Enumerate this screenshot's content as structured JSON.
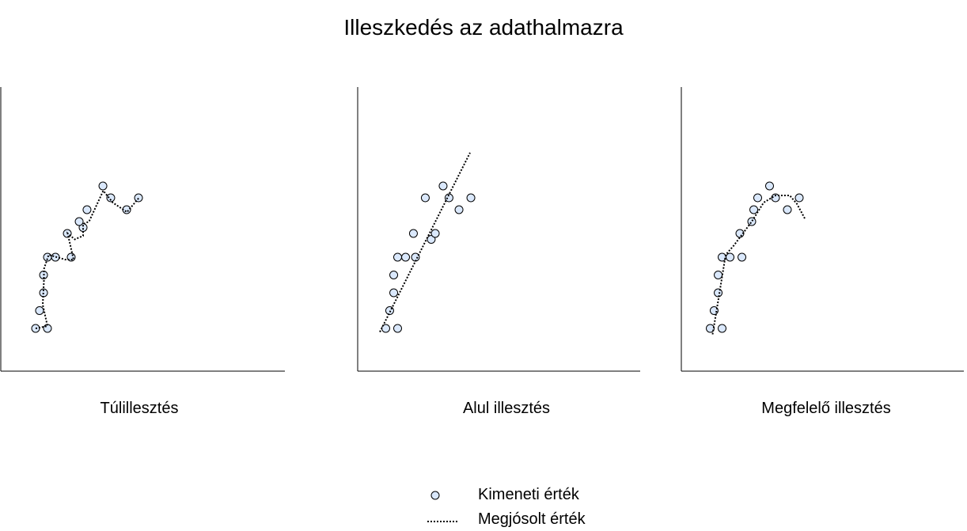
{
  "title": "Illeszkedés az adathalmazra",
  "colors": {
    "marker_fill": "#dae8fc",
    "marker_stroke": "#000000",
    "line": "#000000"
  },
  "legend": [
    {
      "label": "Kimeneti érték",
      "symbol": "circle-marker"
    },
    {
      "label": "Megjósolt érték",
      "symbol": "dotted-line"
    }
  ],
  "chart_data": [
    {
      "type": "scatter",
      "title": "Túlillesztés",
      "points": [
        [
          1,
          1
        ],
        [
          2,
          1
        ],
        [
          1.33,
          2.5
        ],
        [
          1.67,
          4
        ],
        [
          1.67,
          5.5
        ],
        [
          2,
          7
        ],
        [
          2.67,
          7
        ],
        [
          4,
          7
        ],
        [
          3.67,
          9
        ],
        [
          5,
          9.5
        ],
        [
          4.67,
          10
        ],
        [
          5.33,
          11
        ],
        [
          6.67,
          13
        ],
        [
          7.33,
          12
        ],
        [
          8.67,
          11
        ],
        [
          9.67,
          12
        ]
      ],
      "fit_type": "overfit-curve",
      "fit_line": [
        [
          1,
          1
        ],
        [
          2,
          1.2
        ],
        [
          1.6,
          3
        ],
        [
          1.7,
          5
        ],
        [
          1.7,
          6
        ],
        [
          2.1,
          7.2
        ],
        [
          3.5,
          6.8
        ],
        [
          4.2,
          6.8
        ],
        [
          3.7,
          9
        ],
        [
          4.3,
          8.5
        ],
        [
          5,
          8.8
        ],
        [
          5,
          9.8
        ],
        [
          5.5,
          10
        ],
        [
          6.7,
          12.6
        ],
        [
          7.5,
          11.6
        ],
        [
          8.7,
          10.8
        ],
        [
          9.7,
          12
        ]
      ]
    },
    {
      "type": "scatter",
      "title": "Alul illesztés",
      "points": [
        [
          1.5,
          1
        ],
        [
          1.83,
          2.5
        ],
        [
          2.17,
          4
        ],
        [
          2.17,
          5.5
        ],
        [
          2.5,
          7
        ],
        [
          2.5,
          1
        ],
        [
          3.17,
          7
        ],
        [
          3.83,
          9
        ],
        [
          4,
          7
        ],
        [
          4.83,
          12
        ],
        [
          5.33,
          8.5
        ],
        [
          5.67,
          9
        ],
        [
          6.33,
          13
        ],
        [
          6.83,
          12
        ],
        [
          7.67,
          11
        ],
        [
          8.67,
          12
        ]
      ],
      "fit_type": "linear",
      "fit_line": [
        [
          1,
          0.7
        ],
        [
          8.6,
          15.8
        ]
      ]
    },
    {
      "type": "scatter",
      "title": "Megfelelő illesztés",
      "points": [
        [
          1.5,
          1
        ],
        [
          1.83,
          2.5
        ],
        [
          2.17,
          4
        ],
        [
          2.17,
          5.5
        ],
        [
          2.5,
          7
        ],
        [
          2.5,
          1
        ],
        [
          3.17,
          7
        ],
        [
          4,
          9
        ],
        [
          4.17,
          7
        ],
        [
          5,
          10
        ],
        [
          5.17,
          11
        ],
        [
          5.5,
          12
        ],
        [
          6.5,
          13
        ],
        [
          7,
          12
        ],
        [
          8,
          11
        ],
        [
          9,
          12
        ]
      ],
      "fit_type": "quadratic-curve",
      "fit_line": [
        [
          1.7,
          0.5
        ],
        [
          2.2,
          3.5
        ],
        [
          2.8,
          7.2
        ],
        [
          3.5,
          8
        ],
        [
          5,
          10
        ],
        [
          6,
          11.6
        ],
        [
          7,
          12.2
        ],
        [
          8.2,
          12.2
        ],
        [
          8.8,
          11.5
        ],
        [
          9.5,
          10.2
        ]
      ]
    }
  ]
}
